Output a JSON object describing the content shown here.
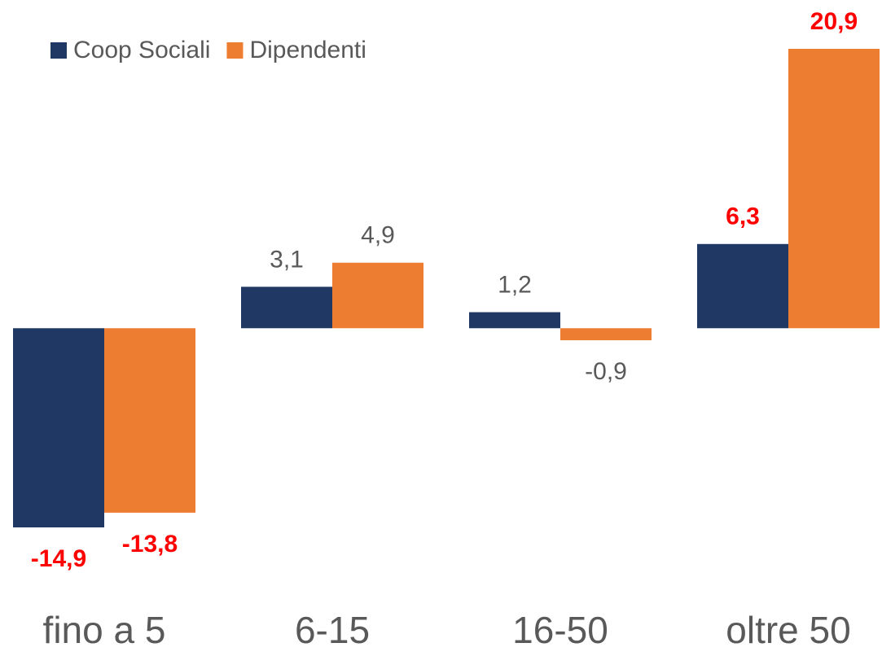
{
  "chart_data": {
    "type": "bar",
    "categories": [
      "fino a 5",
      "6-15",
      "16-50",
      "oltre 50"
    ],
    "series": [
      {
        "name": "Coop Sociali",
        "color": "#203864",
        "values": [
          -14.9,
          3.1,
          1.2,
          6.3
        ],
        "value_labels": [
          "-14,9",
          "3,1",
          "1,2",
          "6,3"
        ],
        "label_colors": [
          "#ff0000",
          "#595959",
          "#595959",
          "#ff0000"
        ]
      },
      {
        "name": "Dipendenti",
        "color": "#ed7d31",
        "values": [
          -13.8,
          4.9,
          -0.9,
          20.9
        ],
        "value_labels": [
          "-13,8",
          "4,9",
          "-0,9",
          "20,9"
        ],
        "label_colors": [
          "#ff0000",
          "#595959",
          "#595959",
          "#ff0000"
        ]
      }
    ],
    "legend": "top-left",
    "grid": false
  }
}
